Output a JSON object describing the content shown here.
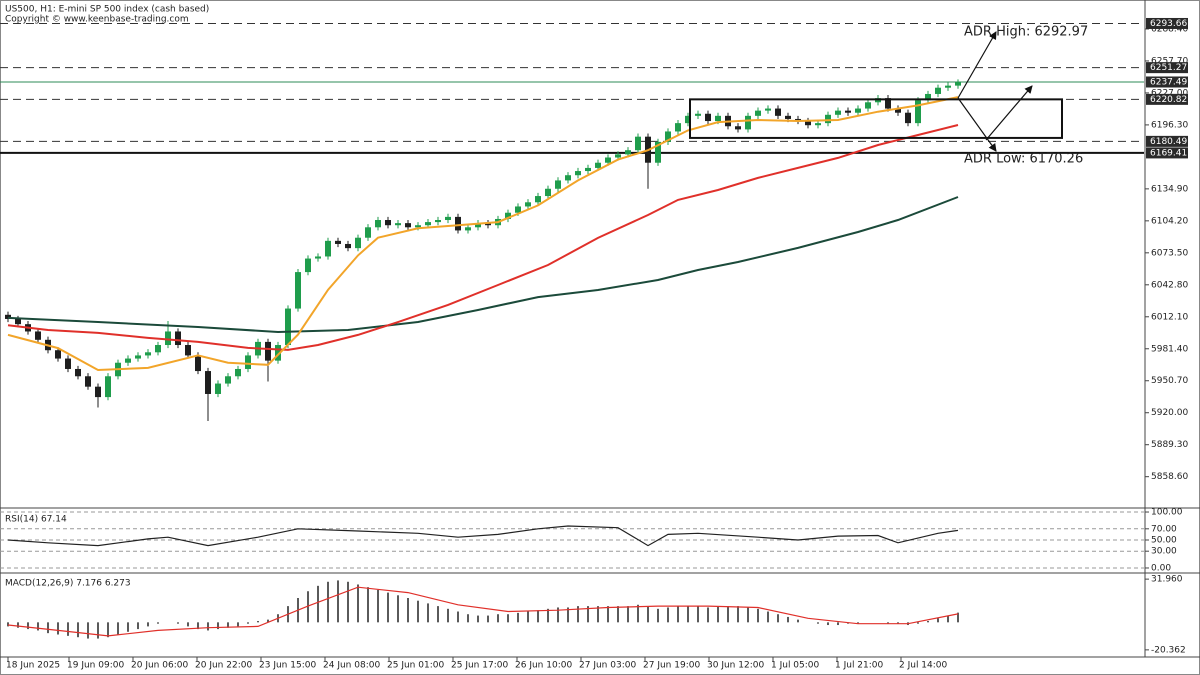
{
  "chart_data": [
    {
      "type": "candlestick",
      "title": "US500, H1:  E-mini SP 500 index (cash based)",
      "subtitle": "Copyright © www.keenbase-trading.com",
      "xlim": [
        -0.8,
        113.6
      ],
      "xticks": [
        {
          "value": 0,
          "label": "18 Jun 2025"
        },
        {
          "value": 6.1,
          "label": "19 Jun 09:00"
        },
        {
          "value": 12.5,
          "label": "20 Jun 06:00"
        },
        {
          "value": 18.9,
          "label": "20 Jun 22:00"
        },
        {
          "value": 25.3,
          "label": "23 Jun 15:00"
        },
        {
          "value": 31.7,
          "label": "24 Jun 08:00"
        },
        {
          "value": 38.1,
          "label": "25 Jun 01:00"
        },
        {
          "value": 44.5,
          "label": "25 Jun 17:00"
        },
        {
          "value": 50.9,
          "label": "26 Jun 10:00"
        },
        {
          "value": 57.3,
          "label": "27 Jun 03:00"
        },
        {
          "value": 63.7,
          "label": "27 Jun 19:00"
        },
        {
          "value": 70.1,
          "label": "30 Jun 12:00"
        },
        {
          "value": 76.5,
          "label": "1 Jul 05:00"
        },
        {
          "value": 82.9,
          "label": "1 Jul 21:00"
        },
        {
          "value": 89.3,
          "label": "2 Jul 14:00"
        }
      ],
      "ylim": [
        5829.5,
        6316.2
      ],
      "yticks": [
        {
          "value": 5858.6,
          "label": "5858.60"
        },
        {
          "value": 5889.3,
          "label": "5889.30"
        },
        {
          "value": 5920,
          "label": "5920.00"
        },
        {
          "value": 5950.7,
          "label": "5950.70"
        },
        {
          "value": 5981.4,
          "label": "5981.40"
        },
        {
          "value": 6012.1,
          "label": "6012.10"
        },
        {
          "value": 6042.8,
          "label": "6042.80"
        },
        {
          "value": 6073.5,
          "label": "6073.50"
        },
        {
          "value": 6104.2,
          "label": "6104.20"
        },
        {
          "value": 6134.9,
          "label": "6134.90"
        },
        {
          "value": 6196.3,
          "label": "6196.30"
        },
        {
          "value": 6227,
          "label": "6227.00"
        },
        {
          "value": 6257.7,
          "label": "6257.70"
        },
        {
          "value": 6288.4,
          "label": "6288.40"
        }
      ],
      "up_color": "#1f9d4c",
      "down_color": "#1e1e1e",
      "open": [
        6014,
        6010,
        6005,
        5998,
        5990,
        5980,
        5972,
        5962,
        5955,
        5945,
        5935,
        5955,
        5968,
        5972,
        5975,
        5978,
        5985,
        5998,
        5985,
        5975,
        5960,
        5938,
        5948,
        5955,
        5962,
        5975,
        5988,
        5970,
        5985,
        6020,
        6055,
        6068,
        6070,
        6085,
        6082,
        6078,
        6088,
        6098,
        6105,
        6100,
        6102,
        6098,
        6100,
        6103,
        6105,
        6108,
        6095,
        6098,
        6102,
        6100,
        6106,
        6112,
        6118,
        6122,
        6128,
        6135,
        6143,
        6148,
        6152,
        6155,
        6160,
        6165,
        6168,
        6172,
        6185,
        6160,
        6180,
        6190,
        6198,
        6205,
        6207,
        6200,
        6205,
        6195,
        6192,
        6205,
        6210,
        6212,
        6205,
        6202,
        6200,
        6196,
        6198,
        6206,
        6210,
        6208,
        6212,
        6218,
        6222,
        6212,
        6208,
        6198,
        6220,
        6226,
        6232,
        6234
      ],
      "high": [
        6017,
        6013,
        6008,
        6001,
        5993,
        5983,
        5975,
        5965,
        5958,
        5948,
        5958,
        5971,
        5975,
        5978,
        5981,
        5988,
        6008,
        6001,
        5988,
        5978,
        5963,
        5951,
        5958,
        5965,
        5978,
        5991,
        5991,
        5988,
        6023,
        6058,
        6071,
        6073,
        6088,
        6088,
        6085,
        6091,
        6101,
        6108,
        6108,
        6105,
        6105,
        6103,
        6106,
        6108,
        6111,
        6111,
        6101,
        6105,
        6105,
        6109,
        6115,
        6121,
        6125,
        6131,
        6138,
        6146,
        6151,
        6155,
        6158,
        6163,
        6168,
        6171,
        6175,
        6188,
        6188,
        6183,
        6193,
        6201,
        6208,
        6210,
        6210,
        6208,
        6208,
        6198,
        6208,
        6213,
        6215,
        6215,
        6208,
        6205,
        6203,
        6201,
        6209,
        6213,
        6213,
        6215,
        6221,
        6225,
        6225,
        6215,
        6211,
        6223,
        6229,
        6235,
        6237,
        6240
      ],
      "low": [
        6007,
        6002,
        5995,
        5987,
        5977,
        5969,
        5959,
        5952,
        5942,
        5925,
        5932,
        5952,
        5965,
        5969,
        5972,
        5975,
        5982,
        5982,
        5972,
        5957,
        5912,
        5935,
        5945,
        5952,
        5959,
        5972,
        5950,
        5967,
        5982,
        6017,
        6052,
        6065,
        6067,
        6079,
        6075,
        6075,
        6085,
        6095,
        6097,
        6097,
        6095,
        6095,
        6097,
        6100,
        6102,
        6092,
        6092,
        6095,
        6097,
        6097,
        6103,
        6109,
        6115,
        6119,
        6125,
        6132,
        6140,
        6145,
        6149,
        6152,
        6157,
        6162,
        6165,
        6169,
        6135,
        6157,
        6177,
        6187,
        6195,
        6202,
        6197,
        6197,
        6192,
        6189,
        6189,
        6202,
        6207,
        6202,
        6199,
        6197,
        6193,
        6193,
        6195,
        6203,
        6205,
        6205,
        6209,
        6215,
        6209,
        6205,
        6195,
        6195,
        6217,
        6223,
        6229,
        6231
      ],
      "close": [
        6010,
        6005,
        5998,
        5990,
        5980,
        5972,
        5962,
        5955,
        5945,
        5935,
        5955,
        5968,
        5972,
        5975,
        5978,
        5985,
        5998,
        5985,
        5975,
        5960,
        5938,
        5948,
        5955,
        5962,
        5975,
        5988,
        5970,
        5985,
        6020,
        6055,
        6068,
        6070,
        6085,
        6082,
        6078,
        6088,
        6098,
        6105,
        6100,
        6102,
        6098,
        6100,
        6103,
        6105,
        6108,
        6095,
        6098,
        6102,
        6100,
        6106,
        6112,
        6118,
        6122,
        6128,
        6135,
        6143,
        6148,
        6152,
        6155,
        6160,
        6165,
        6168,
        6172,
        6185,
        6160,
        6180,
        6190,
        6198,
        6205,
        6207,
        6200,
        6205,
        6195,
        6192,
        6205,
        6210,
        6212,
        6205,
        6202,
        6200,
        6196,
        6198,
        6206,
        6210,
        6208,
        6212,
        6218,
        6222,
        6212,
        6208,
        6198,
        6220,
        6226,
        6232,
        6234,
        6237.49
      ],
      "series": [
        {
          "color": "#1b4a3a",
          "x": [
            0,
            9,
            19,
            27,
            34,
            41,
            47,
            53,
            59,
            65,
            69,
            73,
            79,
            85,
            89,
            95
          ],
          "values": [
            6011,
            6007.1,
            6002.3,
            5997.5,
            5999.4,
            6007.1,
            6018.6,
            6031,
            6037.8,
            6047.4,
            6057,
            6064.7,
            6078.2,
            6093.5,
            6105,
            6127.1
          ]
        },
        {
          "color": "#e0302a",
          "x": [
            0,
            4,
            9,
            14,
            19,
            24,
            28,
            31,
            35,
            39,
            44,
            49,
            54,
            59,
            64,
            67,
            71,
            75,
            79,
            83,
            87,
            91,
            95
          ],
          "values": [
            6004,
            5999.4,
            5996.6,
            5991.8,
            5988,
            5982.2,
            5980.3,
            5985,
            5994.7,
            6007,
            6023.5,
            6042.6,
            6061.8,
            6087.8,
            6109.8,
            6124.3,
            6133.8,
            6145.4,
            6155,
            6164.6,
            6177,
            6186.6,
            6196.2
          ]
        },
        {
          "color": "#f2a52a",
          "x": [
            0,
            5,
            9,
            14,
            19,
            22,
            26,
            29,
            32,
            35,
            37,
            41,
            45,
            49,
            53,
            57,
            61,
            64,
            68,
            71,
            75,
            79,
            83,
            87,
            91,
            95
          ],
          "values": [
            5994.7,
            5982,
            5961,
            5963,
            5975,
            5968,
            5966,
            5995,
            6038,
            6071,
            6088,
            6097,
            6100,
            6103,
            6119,
            6143,
            6163,
            6172,
            6191,
            6199,
            6201,
            6200,
            6201,
            6209,
            6215,
            6223
          ]
        }
      ],
      "levels": [
        {
          "value": 6293.66,
          "style": "dashed",
          "color": "#333333"
        },
        {
          "value": 6251.27,
          "style": "dashed",
          "color": "#333333"
        },
        {
          "value": 6237.49,
          "style": "solid",
          "color": "#2e8b57"
        },
        {
          "value": 6220.82,
          "style": "dashed",
          "color": "#333333"
        },
        {
          "value": 6180.49,
          "style": "dashed",
          "color": "#333333"
        },
        {
          "value": 6169.41,
          "style": "solid",
          "color": "#111111"
        }
      ],
      "box": {
        "x": [
          68.2,
          105.4
        ],
        "y": [
          6220.82,
          6183.8
        ]
      },
      "annotations": [
        "ADR High: 6292.97",
        "ADR Low: 6170.26"
      ]
    },
    {
      "type": "line",
      "title": "RSI(14) 67.14",
      "ylim": [
        -5.4,
        105.4
      ],
      "yticks": [
        {
          "value": 100,
          "label": "100.00"
        },
        {
          "value": 70,
          "label": "70.00"
        },
        {
          "value": 50,
          "label": "50.00"
        },
        {
          "value": 30,
          "label": "30.00"
        },
        {
          "value": 0,
          "label": "0.00"
        }
      ],
      "grid": true,
      "series": [
        {
          "color": "#222222",
          "x": [
            0,
            4,
            9,
            14,
            16,
            20,
            25,
            29,
            35,
            41,
            45,
            49,
            53,
            56,
            61,
            64,
            66,
            69,
            75,
            79,
            83,
            87,
            89,
            93,
            95
          ],
          "values": [
            50,
            45,
            40,
            52,
            55,
            40,
            55,
            70,
            66,
            62,
            55,
            60,
            70,
            75,
            72,
            40,
            60,
            62,
            55,
            50,
            57,
            58,
            45,
            62,
            67.14
          ]
        }
      ]
    },
    {
      "type": "macd",
      "title": "MACD(12,26,9) 7.176 6.273",
      "ylim": [
        -24.9,
        35.75
      ],
      "yticks": [
        {
          "value": 31.96,
          "label": "31.960"
        },
        -20.362
      ],
      "histogram": {
        "color": "#222222",
        "values": [
          -3,
          -4,
          -5,
          -6,
          -8,
          -9,
          -10,
          -11,
          -12,
          -12,
          -11,
          -9,
          -7,
          -5,
          -3,
          -1,
          0,
          -1,
          -3,
          -5,
          -6,
          -5,
          -4,
          -3,
          -1,
          1,
          2,
          6,
          12,
          18,
          23,
          27,
          30,
          31,
          30,
          28,
          26,
          24,
          22,
          20,
          18,
          16,
          14,
          12,
          10,
          8,
          6,
          5,
          5,
          6,
          6,
          7,
          8,
          9,
          10,
          11,
          11,
          12,
          12,
          12,
          12,
          12,
          12,
          13,
          12,
          10,
          11,
          12,
          12,
          12,
          11,
          12,
          12,
          12,
          11,
          10,
          8,
          6,
          4,
          2,
          0,
          -1,
          -2,
          -2,
          -1,
          -1,
          0,
          0,
          -1,
          -1,
          -2,
          -1,
          1,
          3,
          5,
          7.176
        ]
      },
      "series": [
        {
          "color": "#e0302a",
          "x": [
            0,
            5,
            10,
            15,
            20,
            25,
            30,
            35,
            40,
            45,
            50,
            55,
            60,
            65,
            70,
            75,
            80,
            85,
            90,
            95
          ],
          "values": [
            -2,
            -6,
            -10,
            -6,
            -4,
            -3,
            12,
            26,
            22,
            13,
            8,
            9,
            11,
            12,
            12,
            11,
            3,
            -1,
            -1,
            6.273
          ]
        }
      ]
    }
  ]
}
